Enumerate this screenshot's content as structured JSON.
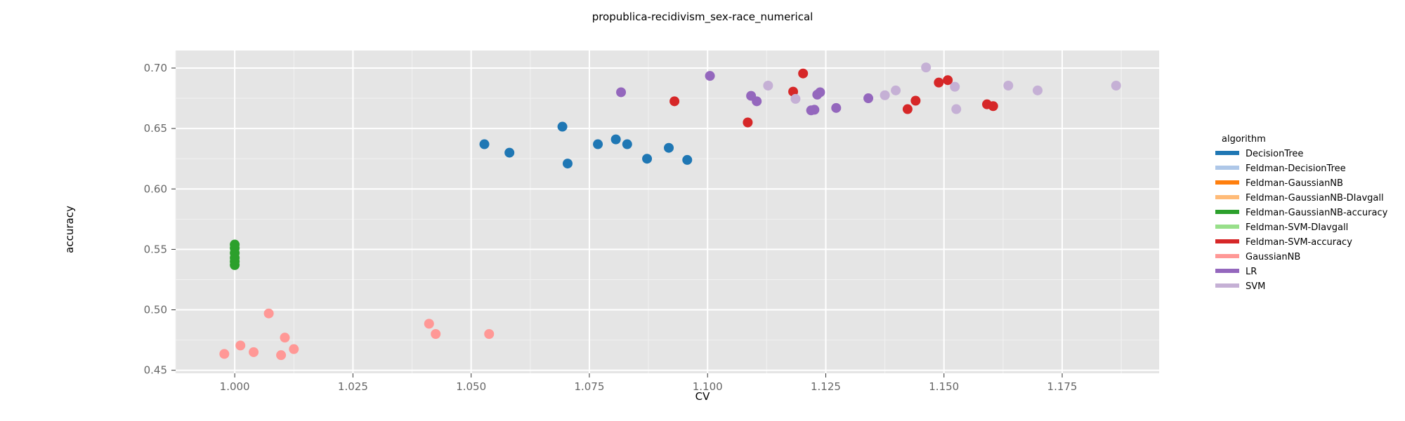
{
  "chart_data": {
    "type": "scatter",
    "title": "propublica-recidivism_sex-race_numerical",
    "xlabel": "CV",
    "ylabel": "accuracy",
    "xlim": [
      0.9875,
      1.1955
    ],
    "ylim": [
      0.4475,
      0.7145
    ],
    "xticks": [
      1.0,
      1.025,
      1.05,
      1.075,
      1.1,
      1.125,
      1.15,
      1.175
    ],
    "xtick_labels": [
      "1.000",
      "1.025",
      "1.050",
      "1.075",
      "1.100",
      "1.125",
      "1.150",
      "1.175"
    ],
    "yticks": [
      0.45,
      0.5,
      0.55,
      0.6,
      0.65,
      0.7
    ],
    "ytick_labels": [
      "0.45",
      "0.50",
      "0.55",
      "0.60",
      "0.65",
      "0.70"
    ],
    "grid": true,
    "legend_title": "algorithm",
    "legend_position": "right",
    "series": [
      {
        "name": "DecisionTree",
        "color": "#1f77b4",
        "points": [
          [
            1.0528,
            0.637
          ],
          [
            1.0581,
            0.63
          ],
          [
            1.0693,
            0.6515
          ],
          [
            1.0704,
            0.621
          ],
          [
            1.0768,
            0.637
          ],
          [
            1.0806,
            0.641
          ],
          [
            1.083,
            0.637
          ],
          [
            1.0872,
            0.625
          ],
          [
            1.0918,
            0.634
          ],
          [
            1.0957,
            0.624
          ]
        ]
      },
      {
        "name": "Feldman-DecisionTree",
        "color": "#aec7e8",
        "points": []
      },
      {
        "name": "Feldman-GaussianNB",
        "color": "#ff7f0e",
        "points": []
      },
      {
        "name": "Feldman-GaussianNB-DIavgall",
        "color": "#ffbb78",
        "points": []
      },
      {
        "name": "Feldman-GaussianNB-accuracy",
        "color": "#2ca02c",
        "points": [
          [
            1.0,
            0.554
          ],
          [
            1.0,
            0.551
          ],
          [
            1.0,
            0.547
          ],
          [
            1.0,
            0.543
          ],
          [
            1.0,
            0.54
          ],
          [
            1.0,
            0.537
          ]
        ]
      },
      {
        "name": "Feldman-SVM-DIavgall",
        "color": "#98df8a",
        "points": []
      },
      {
        "name": "Feldman-SVM-accuracy",
        "color": "#d62728",
        "points": [
          [
            1.093,
            0.6725
          ],
          [
            1.1085,
            0.655
          ],
          [
            1.1181,
            0.6805
          ],
          [
            1.1202,
            0.6955
          ],
          [
            1.1423,
            0.666
          ],
          [
            1.144,
            0.673
          ],
          [
            1.1489,
            0.688
          ],
          [
            1.1508,
            0.69
          ],
          [
            1.1591,
            0.67
          ],
          [
            1.1604,
            0.6685
          ]
        ]
      },
      {
        "name": "GaussianNB",
        "color": "#ff9896",
        "points": [
          [
            0.9978,
            0.4635
          ],
          [
            1.0012,
            0.4705
          ],
          [
            1.004,
            0.465
          ],
          [
            1.0072,
            0.497
          ],
          [
            1.0098,
            0.4625
          ],
          [
            1.0106,
            0.477
          ],
          [
            1.0125,
            0.4675
          ],
          [
            1.0411,
            0.4885
          ],
          [
            1.0425,
            0.48
          ],
          [
            1.0538,
            0.48
          ]
        ]
      },
      {
        "name": "LR",
        "color": "#9467bd",
        "points": [
          [
            1.0817,
            0.68
          ],
          [
            1.1005,
            0.6935
          ],
          [
            1.1092,
            0.677
          ],
          [
            1.1104,
            0.6725
          ],
          [
            1.1219,
            0.665
          ],
          [
            1.1226,
            0.6655
          ],
          [
            1.1232,
            0.678
          ],
          [
            1.1238,
            0.68
          ],
          [
            1.1272,
            0.667
          ],
          [
            1.134,
            0.675
          ]
        ]
      },
      {
        "name": "SVM",
        "color": "#c5b0d5",
        "points": [
          [
            1.1128,
            0.6855
          ],
          [
            1.1186,
            0.6745
          ],
          [
            1.1375,
            0.6775
          ],
          [
            1.1398,
            0.6815
          ],
          [
            1.1462,
            0.7005
          ],
          [
            1.1523,
            0.6845
          ],
          [
            1.1526,
            0.666
          ],
          [
            1.1636,
            0.6855
          ],
          [
            1.1698,
            0.6815
          ],
          [
            1.1864,
            0.6855
          ]
        ]
      }
    ]
  }
}
